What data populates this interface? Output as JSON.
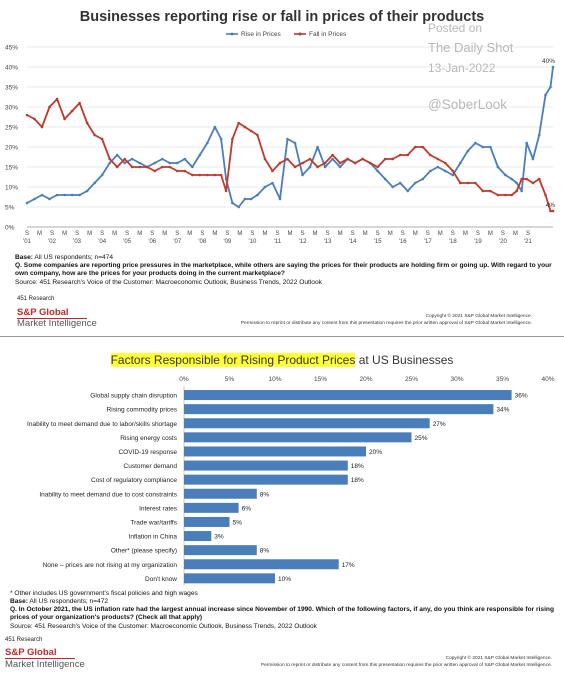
{
  "watermark": {
    "line1": "Posted on",
    "line2": "The Daily Shot",
    "line3": "13-Jan-2022",
    "line4": "@SoberLook"
  },
  "top": {
    "title": "Businesses reporting rise or fall in prices of their products",
    "base_label": "Base:",
    "base_text": " All US respondents; n=474",
    "question_label": "Q.",
    "question_text": " Some companies are reporting price pressures in the marketplace, while others are saying the prices for their products are holding firm or going up. With regard to your own company, how are the prices for your products doing in the current marketplace?",
    "source": "Source: 451 Research's Voice of the Customer: Macroeconomic Outlook, Business Trends, 2022 Outlook",
    "research": "451 Research",
    "brand_line1": "S&P Global",
    "brand_line2": "Market Intelligence",
    "copyright1": "Copyright © 2021 S&P Global Market Intelligence.",
    "copyright2": "Permission to reprint or distribute any content from this presentation requires the prior written approval of S&P Global Market Intelligence."
  },
  "bottom": {
    "title_highlight": "Factors Responsible for Rising Product Prices",
    "title_rest": " at US Businesses",
    "footnote": "* Other includes US government's fiscal policies and high wages",
    "base_label": "Base:",
    "base_text": " All US respondents; n=472",
    "question_label": "Q.",
    "question_text": " In October 2021, the US inflation rate had the largest annual increase since November of 1990. Which of the following factors, if any, do you think are responsible for rising prices of your organization's products? (Check all that apply)",
    "source": "Source: 451 Research's Voice of the Customer: Macroeconomic Outlook, Business Trends, 2022 Outlook",
    "research": "451 Research",
    "brand_line1": "S&P Global",
    "brand_line2": "Market Intelligence",
    "copyright1": "Copyright © 2021 S&P Global Market Intelligence.",
    "copyright2": "Permission to reprint or distribute any content from this presentation requires the prior written approval of S&P Global Market Intelligence."
  },
  "chart_data": [
    {
      "type": "line",
      "title": "Businesses reporting rise or fall in prices of their products",
      "ylim": [
        0,
        45
      ],
      "yticks": [
        "0%",
        "5%",
        "10%",
        "15%",
        "20%",
        "25%",
        "30%",
        "35%",
        "40%",
        "45%"
      ],
      "xticks": [
        {
          "s": "S",
          "y": "'01"
        },
        {
          "s": "S",
          "y": "'02"
        },
        {
          "s": "S",
          "y": "'03"
        },
        {
          "s": "S",
          "y": "'04"
        },
        {
          "s": "S",
          "y": "'05"
        },
        {
          "s": "S",
          "y": "'06"
        },
        {
          "s": "S",
          "y": "'07"
        },
        {
          "s": "S",
          "y": "'08"
        },
        {
          "s": "S",
          "y": "'09"
        },
        {
          "s": "S",
          "y": "'10"
        },
        {
          "s": "S",
          "y": "'11"
        },
        {
          "s": "S",
          "y": "'12"
        },
        {
          "s": "S",
          "y": "'13"
        },
        {
          "s": "S",
          "y": "'14"
        },
        {
          "s": "S",
          "y": "'15"
        },
        {
          "s": "S",
          "y": "'16"
        },
        {
          "s": "S",
          "y": "'17"
        },
        {
          "s": "S",
          "y": "'18"
        },
        {
          "s": "S",
          "y": "'19"
        },
        {
          "s": "S",
          "y": "'20"
        },
        {
          "s": "S",
          "y": "'21"
        }
      ],
      "xrange": [
        2001.0,
        2021.95
      ],
      "grid": true,
      "legend": "top-center",
      "series": [
        {
          "name": "Rise in Prices",
          "color": "#4a7ebb",
          "end_label": "40%",
          "x": [
            2001.0,
            2001.3,
            2001.6,
            2001.9,
            2002.2,
            2002.5,
            2002.8,
            2003.1,
            2003.4,
            2003.7,
            2004.0,
            2004.3,
            2004.6,
            2004.9,
            2005.2,
            2005.5,
            2005.8,
            2006.1,
            2006.4,
            2006.7,
            2007.0,
            2007.3,
            2007.6,
            2007.9,
            2008.2,
            2008.5,
            2008.75,
            2008.95,
            2009.2,
            2009.45,
            2009.7,
            2009.95,
            2010.2,
            2010.5,
            2010.8,
            2011.1,
            2011.4,
            2011.7,
            2012.0,
            2012.3,
            2012.6,
            2012.9,
            2013.2,
            2013.5,
            2013.8,
            2014.1,
            2014.4,
            2014.7,
            2015.0,
            2015.3,
            2015.6,
            2015.9,
            2016.2,
            2016.5,
            2016.8,
            2017.1,
            2017.4,
            2017.7,
            2018.0,
            2018.3,
            2018.6,
            2018.9,
            2019.2,
            2019.5,
            2019.8,
            2020.1,
            2020.35,
            2020.55,
            2020.75,
            2020.95,
            2021.2,
            2021.45,
            2021.7,
            2021.9
          ],
          "values": [
            6,
            7,
            8,
            7,
            8,
            8,
            8,
            8,
            9,
            11,
            13,
            16,
            18,
            16,
            17,
            16,
            15,
            16,
            17,
            16,
            16,
            17,
            15,
            18,
            21,
            25,
            22,
            12,
            6,
            5,
            7,
            7,
            8,
            10,
            11,
            7,
            22,
            21,
            13,
            15,
            20,
            15,
            17,
            15,
            17,
            16,
            17,
            16,
            14,
            12,
            10,
            11,
            9,
            11,
            12,
            14,
            15,
            14,
            13,
            16,
            19,
            21,
            20,
            20,
            15,
            13,
            12,
            11,
            9,
            21,
            17,
            23,
            33,
            35
          ],
          "tail": {
            "x": [
              2021.9,
              2022.0
            ],
            "values": [
              35,
              40
            ]
          }
        },
        {
          "name": "Fall in Prices",
          "color": "#c0392b",
          "end_label": "4%",
          "x": [
            2001.0,
            2001.3,
            2001.6,
            2001.9,
            2002.2,
            2002.5,
            2002.8,
            2003.1,
            2003.4,
            2003.7,
            2004.0,
            2004.3,
            2004.6,
            2004.9,
            2005.2,
            2005.5,
            2005.8,
            2006.1,
            2006.4,
            2006.7,
            2007.0,
            2007.3,
            2007.6,
            2007.9,
            2008.2,
            2008.5,
            2008.75,
            2008.95,
            2009.2,
            2009.45,
            2009.7,
            2009.95,
            2010.2,
            2010.5,
            2010.8,
            2011.1,
            2011.4,
            2011.7,
            2012.0,
            2012.3,
            2012.6,
            2012.9,
            2013.2,
            2013.5,
            2013.8,
            2014.1,
            2014.4,
            2014.7,
            2015.0,
            2015.3,
            2015.6,
            2015.9,
            2016.2,
            2016.5,
            2016.8,
            2017.1,
            2017.4,
            2017.7,
            2018.0,
            2018.3,
            2018.6,
            2018.9,
            2019.2,
            2019.5,
            2019.8,
            2020.1,
            2020.35,
            2020.55,
            2020.75,
            2020.95,
            2021.2,
            2021.45,
            2021.7,
            2021.9
          ],
          "values": [
            28,
            27,
            25,
            30,
            32,
            27,
            29,
            31,
            26,
            23,
            22,
            17,
            15,
            17,
            15,
            15,
            15,
            14,
            15,
            15,
            14,
            14,
            13,
            13,
            13,
            13,
            13,
            9,
            22,
            26,
            25,
            24,
            23,
            17,
            14,
            16,
            17,
            15,
            16,
            17,
            15,
            16,
            18,
            16,
            17,
            16,
            17,
            16,
            15,
            17,
            17,
            18,
            18,
            20,
            20,
            18,
            17,
            16,
            14,
            11,
            11,
            11,
            9,
            9,
            8,
            8,
            8,
            9,
            12,
            12,
            11,
            12,
            8,
            4
          ],
          "tail": {
            "x": [
              2021.9,
              2022.0
            ],
            "values": [
              4,
              4
            ]
          }
        }
      ]
    },
    {
      "type": "bar",
      "orientation": "horizontal",
      "title": "Factors Responsible for Rising Product Prices at US Businesses",
      "xlim": [
        0,
        40
      ],
      "xticks": [
        "0%",
        "5%",
        "10%",
        "15%",
        "20%",
        "25%",
        "30%",
        "35%",
        "40%"
      ],
      "color": "#4a7ebb",
      "categories": [
        "Global supply chain disruption",
        "Rising commodity prices",
        "Inability to meet demand due to labor/skills shortage",
        "Rising energy costs",
        "COVID-19 response",
        "Customer demand",
        "Cost of regulatory compliance",
        "Inability to meet demand due to cost constraints",
        "Interest rates",
        "Trade war/tariffs",
        "Inflation in China",
        "Other* (please specify)",
        "None – prices are not rising at my organization",
        "Don't know"
      ],
      "values": [
        36,
        34,
        27,
        25,
        20,
        18,
        18,
        8,
        6,
        5,
        3,
        8,
        17,
        10
      ],
      "labels": [
        "36%",
        "34%",
        "27%",
        "25%",
        "20%",
        "18%",
        "18%",
        "8%",
        "6%",
        "5%",
        "3%",
        "8%",
        "17%",
        "10%"
      ]
    }
  ]
}
